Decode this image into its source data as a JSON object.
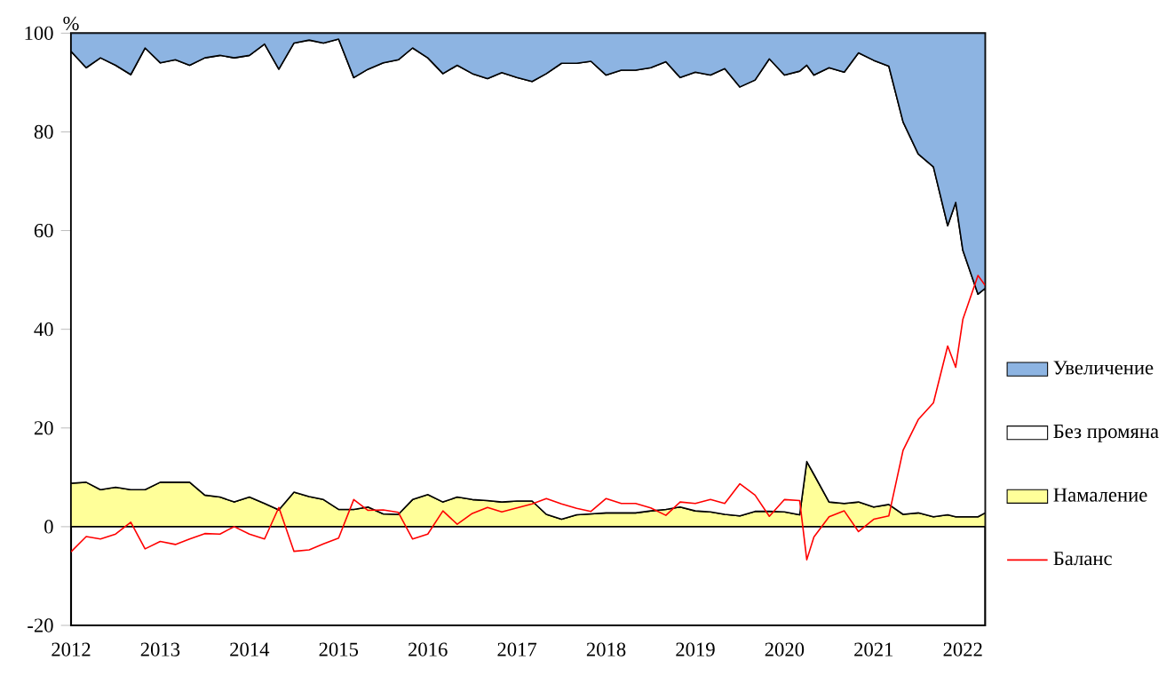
{
  "chart_data": {
    "type": "area",
    "ylabel": "%",
    "stacked": true,
    "legend": "right",
    "x": [
      2012.0,
      2012.17,
      2012.33,
      2012.5,
      2012.67,
      2012.83,
      2013.0,
      2013.17,
      2013.33,
      2013.5,
      2013.67,
      2013.83,
      2014.0,
      2014.17,
      2014.33,
      2014.5,
      2014.67,
      2014.83,
      2015.0,
      2015.17,
      2015.33,
      2015.5,
      2015.67,
      2015.83,
      2016.0,
      2016.17,
      2016.33,
      2016.5,
      2016.67,
      2016.83,
      2017.0,
      2017.17,
      2017.33,
      2017.5,
      2017.67,
      2017.83,
      2018.0,
      2018.17,
      2018.33,
      2018.5,
      2018.67,
      2018.83,
      2019.0,
      2019.17,
      2019.33,
      2019.5,
      2019.67,
      2019.83,
      2020.0,
      2020.17,
      2020.25,
      2020.33,
      2020.5,
      2020.67,
      2020.83,
      2021.0,
      2021.17,
      2021.33,
      2021.5,
      2021.67,
      2021.83,
      2021.92,
      2022.0,
      2022.17,
      2022.25
    ],
    "series": [
      {
        "name": "Намаление",
        "color": "#ffff99",
        "values": [
          8.8,
          9,
          7.5,
          8,
          7.5,
          7.5,
          9,
          9,
          9,
          6.4,
          6,
          5,
          6,
          4.7,
          3.4,
          7,
          6.1,
          5.5,
          3.5,
          3.5,
          4,
          2.6,
          2.5,
          5.5,
          6.5,
          5,
          6,
          5.5,
          5.3,
          5,
          5.2,
          5.2,
          2.5,
          1.5,
          2.4,
          2.6,
          2.8,
          2.8,
          2.8,
          3.2,
          3.5,
          4,
          3.2,
          3,
          2.5,
          2.2,
          3.1,
          3.1,
          3,
          2.4,
          13.2,
          10.6,
          5,
          4.7,
          5,
          4,
          4.5,
          2.5,
          2.8,
          2,
          2.4,
          2,
          2,
          2,
          2.8
        ]
      },
      {
        "name": "Без промяна",
        "color": "#ffffff",
        "values": [
          87.5,
          84,
          87.5,
          85.5,
          84.1,
          89.5,
          85,
          85.6,
          84.5,
          88.6,
          89.5,
          90,
          89.5,
          93.1,
          89.3,
          91,
          92.5,
          92.5,
          95.3,
          87.5,
          88.7,
          91.4,
          92.1,
          91.5,
          88.5,
          86.8,
          87.5,
          86.3,
          85.5,
          87,
          85.8,
          85,
          89.3,
          92.4,
          91.5,
          91.7,
          88.7,
          89.7,
          89.7,
          89.8,
          90.7,
          87,
          88.9,
          88.5,
          90.3,
          86.9,
          87.4,
          91.7,
          88.5,
          89.9,
          80.3,
          80.9,
          88,
          87.4,
          91,
          90.5,
          88.8,
          79.5,
          72.7,
          70.9,
          58.6,
          63.7,
          54,
          45.1,
          45.5
        ]
      },
      {
        "name": "Увеличение",
        "color": "#8db4e2",
        "values": [
          3.7,
          7,
          5,
          6.5,
          8.4,
          3,
          6,
          5.4,
          6.5,
          5,
          4.5,
          5,
          4.5,
          2.2,
          7.3,
          2,
          1.4,
          2,
          1.2,
          9,
          7.3,
          6,
          5.4,
          3,
          5,
          8.2,
          6.5,
          8.2,
          9.2,
          8,
          9,
          9.8,
          8.2,
          6.1,
          6.1,
          5.7,
          8.5,
          7.5,
          7.5,
          7,
          5.8,
          9,
          7.9,
          8.5,
          7.2,
          10.9,
          9.5,
          5.2,
          8.5,
          7.7,
          6.5,
          8.5,
          7,
          7.9,
          4,
          5.5,
          6.7,
          18,
          24.5,
          27.1,
          39,
          34.3,
          44,
          52.9,
          51.7
        ]
      },
      {
        "name": "Баланс",
        "type": "line",
        "color": "#ff0000",
        "values": [
          -5.1,
          -2,
          -2.5,
          -1.5,
          0.9,
          -4.5,
          -3,
          -3.6,
          -2.5,
          -1.4,
          -1.5,
          0,
          -1.5,
          -2.5,
          3.9,
          -5,
          -4.7,
          -3.5,
          -2.3,
          5.5,
          3.3,
          3.4,
          2.9,
          -2.5,
          -1.5,
          3.2,
          0.5,
          2.7,
          3.9,
          3,
          3.8,
          4.6,
          5.7,
          4.6,
          3.7,
          3.1,
          5.7,
          4.7,
          4.7,
          3.8,
          2.3,
          5,
          4.7,
          5.5,
          4.7,
          8.7,
          6.4,
          2.1,
          5.5,
          5.3,
          -6.7,
          -2.1,
          2,
          3.2,
          -1,
          1.5,
          2.2,
          15.5,
          21.7,
          25.1,
          36.6,
          32.3,
          42,
          50.9,
          48.9
        ]
      }
    ],
    "xlim": [
      2012,
      2022.25
    ],
    "ylim": [
      -20,
      100
    ],
    "xticks": [
      2012,
      2013,
      2014,
      2015,
      2016,
      2017,
      2018,
      2019,
      2020,
      2021,
      2022
    ],
    "yticks": [
      -20,
      0,
      20,
      40,
      60,
      80,
      100
    ]
  }
}
